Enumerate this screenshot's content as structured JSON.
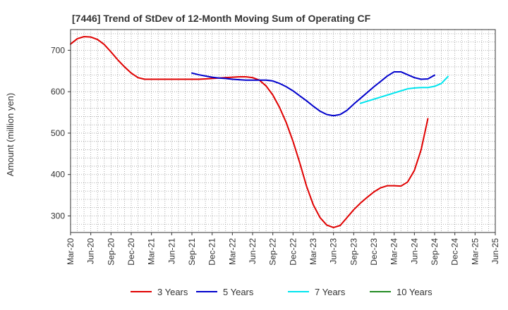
{
  "chart_data": {
    "type": "line",
    "title": "[7446]  Trend of StDev of 12-Month Moving Sum of Operating CF",
    "ylabel": "Amount (million yen)",
    "xlabel": "",
    "ylim": [
      260,
      750
    ],
    "yticks": [
      300,
      400,
      500,
      600,
      700
    ],
    "grid": true,
    "legend_position": "bottom",
    "x_ticks": [
      "Mar-20",
      "Jun-20",
      "Sep-20",
      "Dec-20",
      "Mar-21",
      "Jun-21",
      "Sep-21",
      "Dec-21",
      "Mar-22",
      "Jun-22",
      "Sep-22",
      "Dec-22",
      "Mar-23",
      "Jun-23",
      "Sep-23",
      "Dec-23",
      "Mar-24",
      "Jun-24",
      "Sep-24",
      "Dec-24",
      "Mar-25",
      "Jun-25"
    ],
    "series": [
      {
        "name": "3 Years",
        "color": "#e00000",
        "start_index": 0,
        "values": [
          715,
          728,
          733,
          732,
          726,
          714,
          696,
          677,
          660,
          645,
          634,
          630,
          630,
          630,
          630,
          630,
          630,
          630,
          630,
          630,
          631,
          632,
          633,
          634,
          635,
          636,
          636,
          634,
          628,
          614,
          592,
          562,
          525,
          480,
          428,
          372,
          327,
          296,
          278,
          272,
          277,
          296,
          315,
          331,
          345,
          358,
          368,
          373,
          373,
          372,
          382,
          410,
          460,
          535
        ]
      },
      {
        "name": "5 Years",
        "color": "#0000cc",
        "start_index": 18,
        "values": [
          645,
          641,
          638,
          635,
          633,
          632,
          630,
          629,
          628,
          628,
          628,
          628,
          626,
          620,
          612,
          602,
          590,
          578,
          565,
          553,
          545,
          542,
          545,
          555,
          570,
          584,
          598,
          612,
          625,
          638,
          648,
          648,
          641,
          634,
          630,
          631,
          640
        ]
      },
      {
        "name": "7 Years",
        "color": "#00e5ee",
        "start_index": 43,
        "values": [
          572,
          577,
          582,
          587,
          592,
          597,
          602,
          607,
          609,
          610,
          610,
          613,
          620,
          637
        ]
      },
      {
        "name": "10 Years",
        "color": "#228b22",
        "start_index": 0,
        "values": []
      }
    ]
  }
}
